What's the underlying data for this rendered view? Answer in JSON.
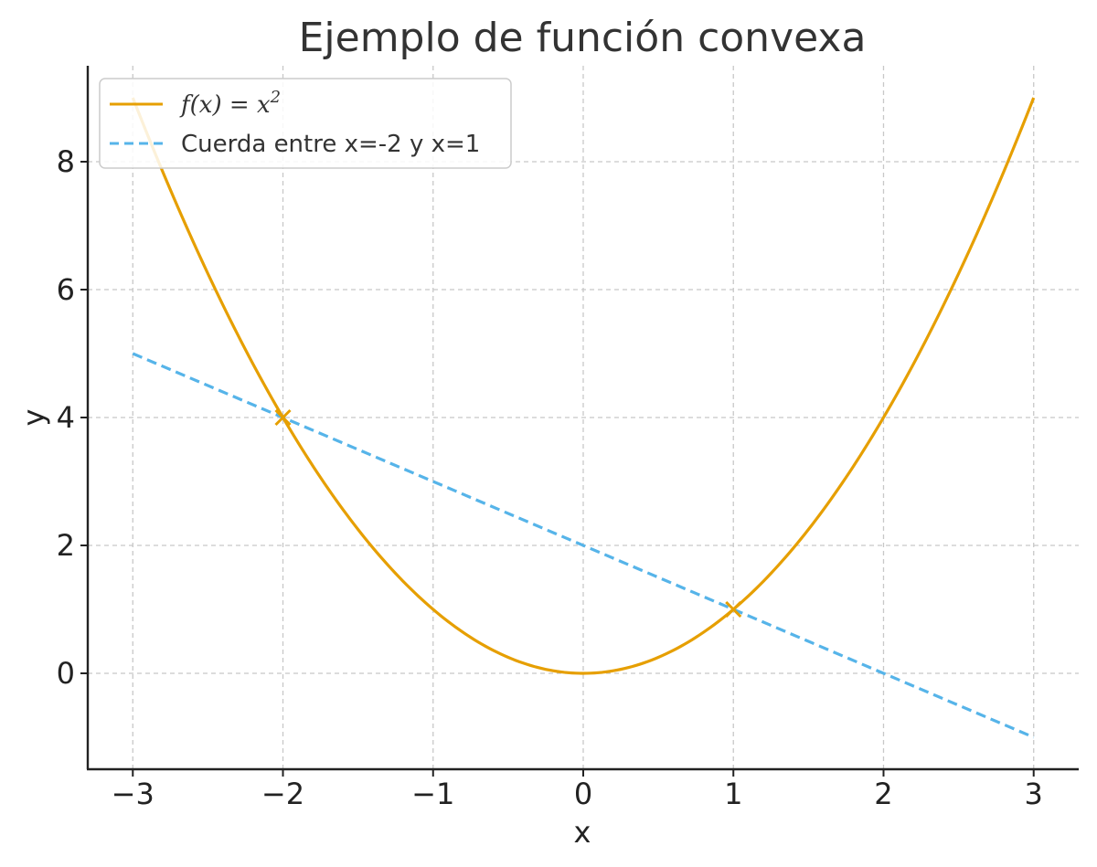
{
  "chart_data": {
    "type": "line",
    "title": "Ejemplo de función convexa",
    "xlabel": "x",
    "ylabel": "y",
    "xlim": [
      -3.3,
      3.3
    ],
    "ylim": [
      -1.5,
      9.5
    ],
    "xticks": [
      -3,
      -2,
      -1,
      0,
      1,
      2,
      3
    ],
    "xtick_labels": [
      "−3",
      "−2",
      "−1",
      "0",
      "1",
      "2",
      "3"
    ],
    "yticks": [
      0,
      2,
      4,
      6,
      8
    ],
    "ytick_labels": [
      "0",
      "2",
      "4",
      "6",
      "8"
    ],
    "grid": true,
    "legend_position": "top-left",
    "series": [
      {
        "name": "f(x) = x²",
        "legend_math": {
          "f": "f",
          "open": "(",
          "x": "x",
          "close": ")",
          "eq": " = ",
          "base": "x",
          "exp": "2"
        },
        "function": "x^2",
        "x": [
          -3,
          -2.5,
          -2,
          -1.5,
          -1,
          -0.5,
          0,
          0.5,
          1,
          1.5,
          2,
          2.5,
          3
        ],
        "y": [
          9,
          6.25,
          4,
          2.25,
          1,
          0.25,
          0,
          0.25,
          1,
          2.25,
          4,
          6.25,
          9
        ],
        "color": "#E69F00",
        "style": "solid"
      },
      {
        "name": "Cuerda entre x=-2 y x=1",
        "x": [
          -3,
          3
        ],
        "y": [
          5,
          -1
        ],
        "color": "#56B4E9",
        "style": "dashed"
      }
    ],
    "markers": [
      {
        "x": -2,
        "y": 4,
        "symbol": "x",
        "color": "#E69F00"
      },
      {
        "x": 1,
        "y": 1,
        "symbol": "x",
        "color": "#E69F00"
      }
    ]
  }
}
